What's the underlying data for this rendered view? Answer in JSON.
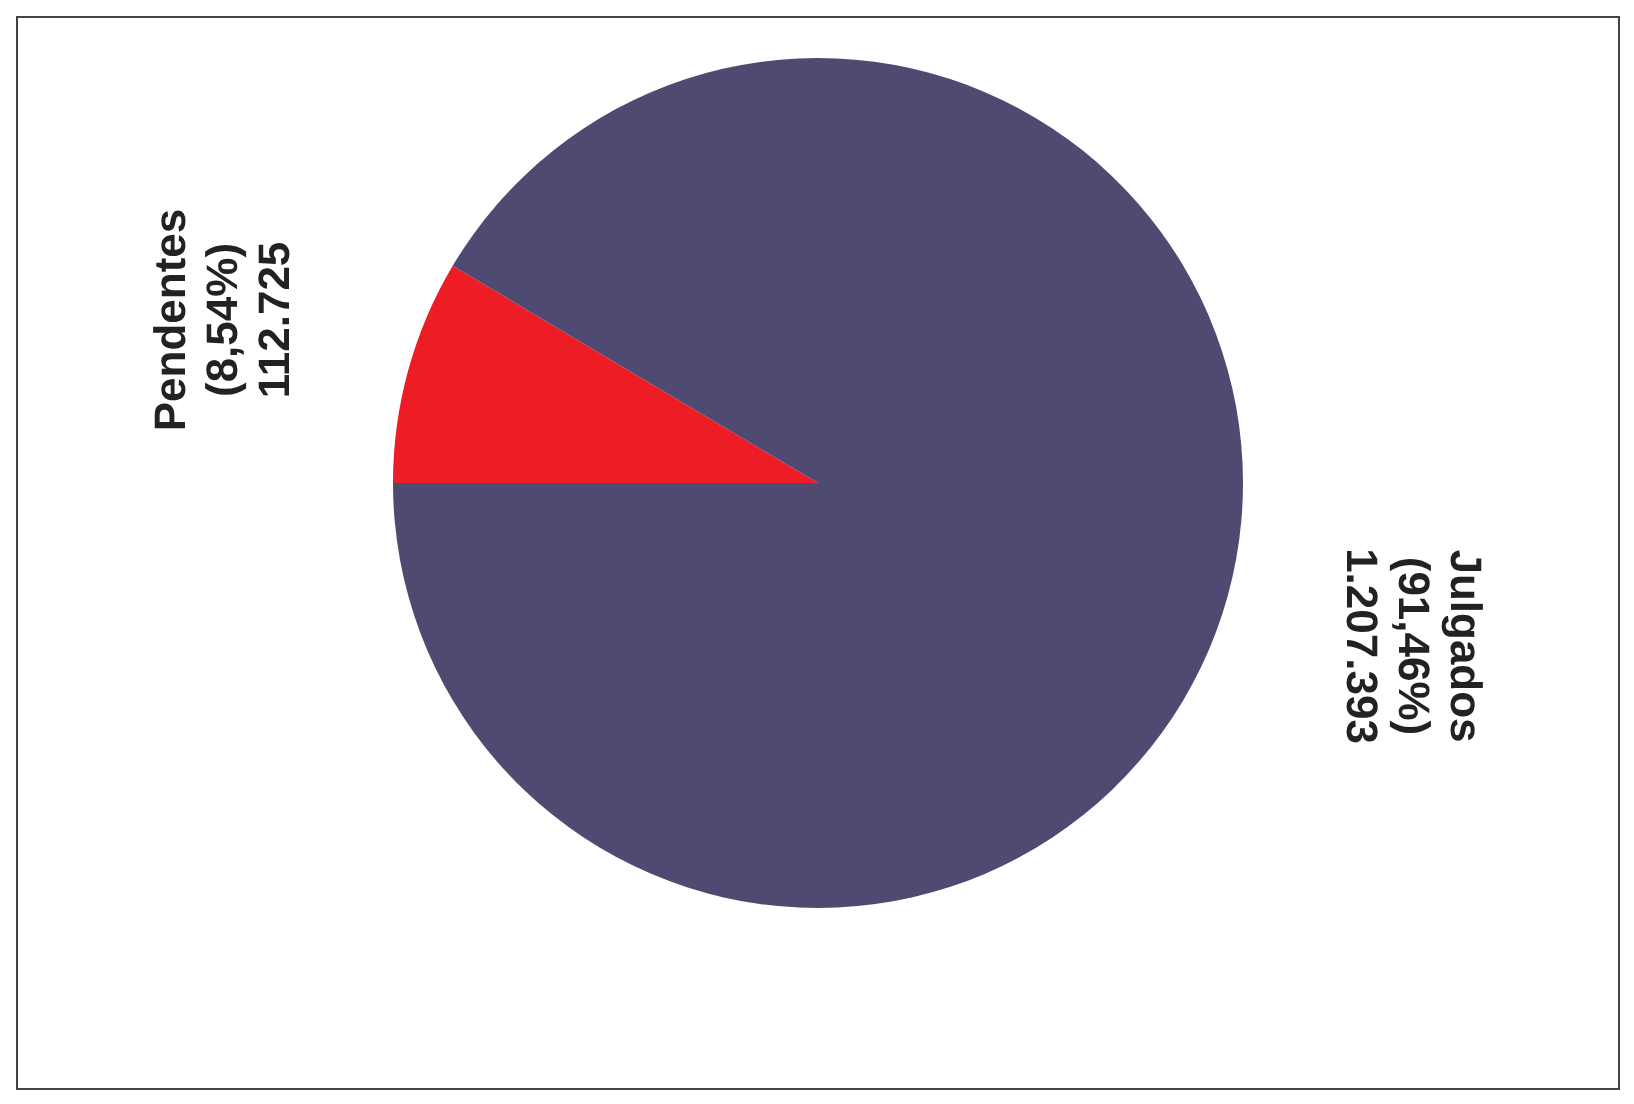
{
  "chart_data": {
    "type": "pie",
    "categories": [
      "Pendentes",
      "Julgados"
    ],
    "values": [
      112725,
      1207393
    ],
    "value_labels": [
      "(8,54%) 112.725",
      "(91,46%) 1.207.393"
    ],
    "colors": [
      "#ee1c25",
      "#4f4a72"
    ],
    "legend": false
  }
}
